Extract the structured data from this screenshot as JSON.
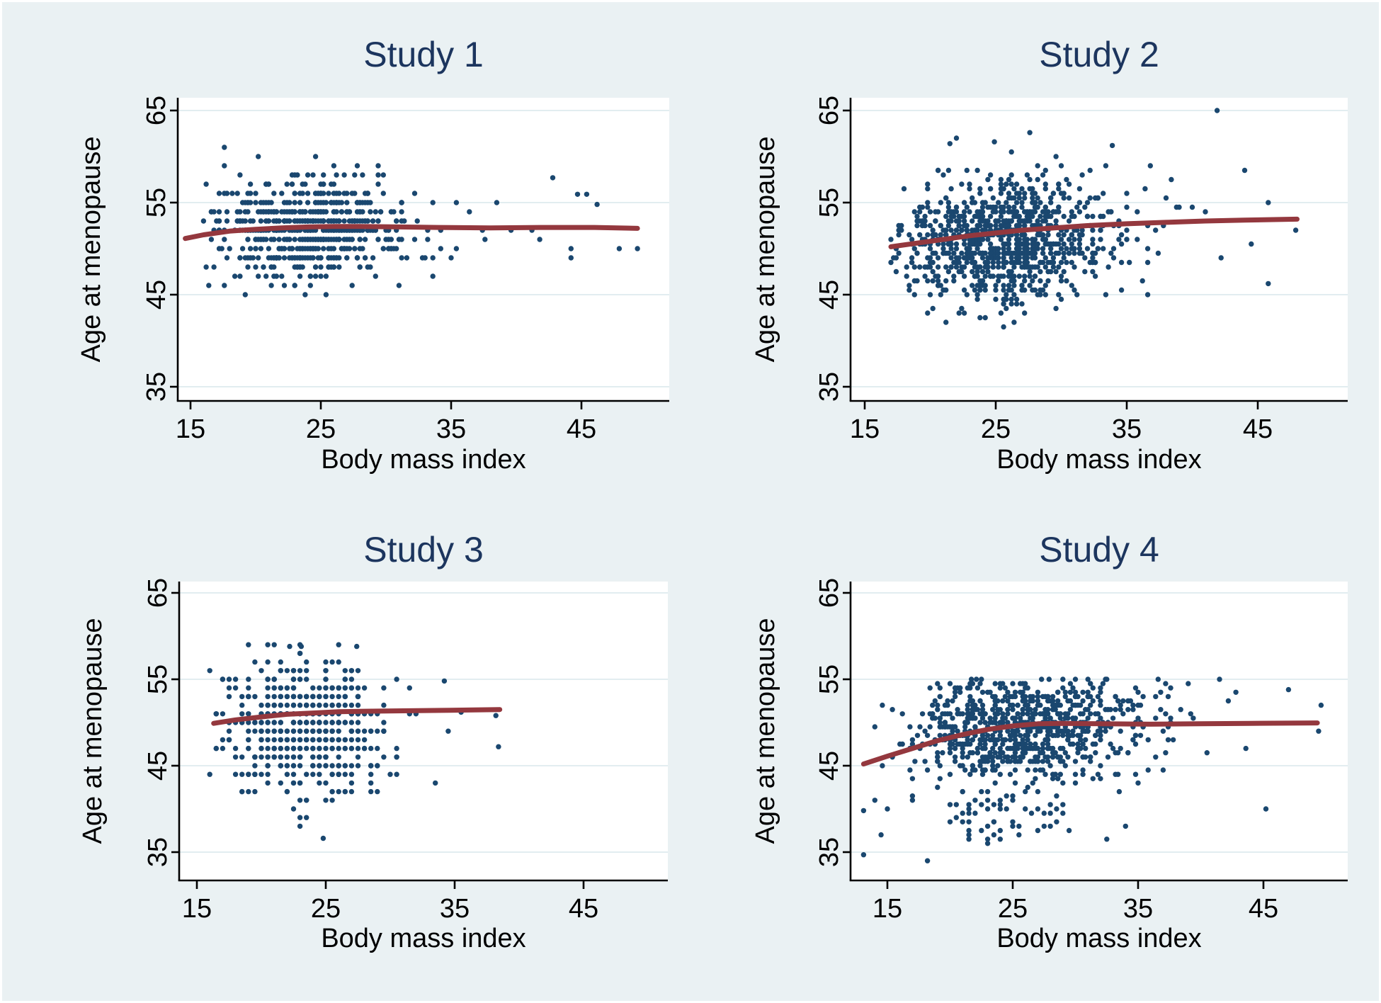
{
  "figure": {
    "background_color": "#eaf1f3",
    "plot_background": "#ffffff",
    "grid_color": "#e2edf0",
    "axis_color": "#000000",
    "point_color": "#1a476f",
    "trend_color": "#94383e",
    "title_color": "#1c355e",
    "x_axis_label": "Body mass index",
    "y_axis_label": "Age at menopause"
  },
  "chart_data": [
    {
      "type": "scatter",
      "title": "Study 1",
      "xlabel": "Body mass index",
      "ylabel": "Age at menopause",
      "x_ticks": [
        15,
        25,
        35,
        45
      ],
      "y_ticks": [
        35,
        45,
        55,
        65
      ],
      "xlim": [
        13.9,
        51.7
      ],
      "ylim": [
        33.5,
        66.4
      ],
      "grid": true,
      "n_points": 650,
      "bmi_dist": {
        "mean": 24.3,
        "sd": 3.6,
        "min": 16,
        "max": 49.3,
        "q": 0.2,
        "tail_p": 0.05,
        "tail_spread": 12
      },
      "age_dist": {
        "mean": 52.2,
        "sd": 2.8,
        "min": 45,
        "max": 61,
        "q": 1
      },
      "corr": 0.02,
      "outliers": [
        [
          42.8,
          57.7
        ],
        [
          44.7,
          55.9
        ],
        [
          45.4,
          55.9
        ],
        [
          46.2,
          54.8
        ],
        [
          44.2,
          50
        ],
        [
          47.9,
          50
        ],
        [
          49.3,
          50
        ],
        [
          41.2,
          52
        ],
        [
          38.5,
          55
        ]
      ],
      "trend_line": [
        [
          14.6,
          51.1
        ],
        [
          16,
          51.5
        ],
        [
          18,
          51.9
        ],
        [
          20,
          52.1
        ],
        [
          22,
          52.25
        ],
        [
          24,
          52.35
        ],
        [
          26,
          52.4
        ],
        [
          28,
          52.4
        ],
        [
          31,
          52.35
        ],
        [
          34,
          52.3
        ],
        [
          38,
          52.25
        ],
        [
          42,
          52.3
        ],
        [
          46,
          52.3
        ],
        [
          49.3,
          52.2
        ]
      ],
      "seed": 7
    },
    {
      "type": "scatter",
      "title": "Study 2",
      "xlabel": "Body mass index",
      "ylabel": "Age at menopause",
      "x_ticks": [
        15,
        25,
        35,
        45
      ],
      "y_ticks": [
        35,
        45,
        55,
        65
      ],
      "xlim": [
        13.9,
        51.9
      ],
      "ylim": [
        33.5,
        66.4
      ],
      "grid": true,
      "n_points": 950,
      "bmi_dist": {
        "mean": 25.5,
        "sd": 3.9,
        "min": 17,
        "max": 48,
        "q": 0.2,
        "tail_p": 0.05,
        "tail_spread": 13
      },
      "age_dist": {
        "mean": 50.8,
        "sd": 3.4,
        "min": 41.5,
        "max": 62.5,
        "q": 0.5
      },
      "corr": 0.08,
      "outliers": [
        [
          41.9,
          65
        ],
        [
          27.6,
          62.6
        ],
        [
          24.9,
          61.6
        ],
        [
          33.9,
          61.2
        ],
        [
          21.5,
          61.4
        ],
        [
          47.9,
          52
        ],
        [
          45.8,
          46.2
        ],
        [
          44.5,
          50.5
        ]
      ],
      "trend_line": [
        [
          17,
          50.2
        ],
        [
          19,
          50.6
        ],
        [
          21,
          51.0
        ],
        [
          23,
          51.4
        ],
        [
          25,
          51.7
        ],
        [
          27,
          52.0
        ],
        [
          29,
          52.2
        ],
        [
          32,
          52.5
        ],
        [
          35,
          52.7
        ],
        [
          38,
          52.85
        ],
        [
          41,
          53.0
        ],
        [
          44,
          53.1
        ],
        [
          48,
          53.2
        ]
      ],
      "seed": 13
    },
    {
      "type": "scatter",
      "title": "Study 3",
      "xlabel": "Body mass index",
      "ylabel": "Age at menopause",
      "x_ticks": [
        15,
        25,
        35,
        45
      ],
      "y_ticks": [
        35,
        45,
        55,
        65
      ],
      "xlim": [
        13.6,
        51.5
      ],
      "ylim": [
        31.7,
        66.3
      ],
      "grid": true,
      "n_points": 560,
      "bmi_dist": {
        "mean": 23.2,
        "sd": 3.2,
        "min": 16,
        "max": 38.5,
        "q": 0.5,
        "tail_p": 0.04,
        "tail_spread": 8
      },
      "age_dist": {
        "mean": 49.8,
        "sd": 3.9,
        "min": 36,
        "max": 59,
        "q": 1
      },
      "corr": 0.04,
      "outliers": [
        [
          24.8,
          36.6
        ],
        [
          22.2,
          58.8
        ],
        [
          23.1,
          58.8
        ],
        [
          27.4,
          58.8
        ],
        [
          34.2,
          54.8
        ],
        [
          35.5,
          51.2
        ],
        [
          38.2,
          50.8
        ],
        [
          38.4,
          47.2
        ]
      ],
      "trend_line": [
        [
          16.3,
          49.9
        ],
        [
          18,
          50.3
        ],
        [
          20,
          50.65
        ],
        [
          22,
          50.95
        ],
        [
          24,
          51.1
        ],
        [
          26,
          51.25
        ],
        [
          28,
          51.3
        ],
        [
          31,
          51.35
        ],
        [
          34,
          51.4
        ],
        [
          36.5,
          51.45
        ],
        [
          38.5,
          51.5
        ]
      ],
      "seed": 5
    },
    {
      "type": "scatter",
      "title": "Study 4",
      "xlabel": "Body mass index",
      "ylabel": "Age at menopause",
      "x_ticks": [
        15,
        25,
        35,
        45
      ],
      "y_ticks": [
        35,
        45,
        55,
        65
      ],
      "xlim": [
        12.1,
        51.7
      ],
      "ylim": [
        31.7,
        66.3
      ],
      "grid": true,
      "n_points": 820,
      "bmi_dist": {
        "mean": 25.8,
        "sd": 4.6,
        "min": 14,
        "max": 49.6,
        "q": 0.2,
        "tail_p": 0.06,
        "tail_spread": 12
      },
      "age_dist": {
        "mean": 49.3,
        "sd": 3.2,
        "min": 42.5,
        "max": 54.9,
        "q": 0.5
      },
      "corr": 0.12,
      "low_cluster": {
        "n_points": 68,
        "bmi_dist": {
          "mean": 24.2,
          "sd": 4.3,
          "min": 13,
          "max": 45.5,
          "q": 0.5,
          "tail_p": 0.04,
          "tail_spread": 10
        },
        "age_dist": {
          "mean": 38.8,
          "sd": 2.1,
          "min": 34.3,
          "max": 42.4,
          "q": 0.5
        }
      },
      "outliers": [
        [
          13.1,
          34.7
        ],
        [
          18.2,
          34.0
        ],
        [
          13.1,
          39.8
        ],
        [
          21.7,
          55
        ],
        [
          22.1,
          55
        ],
        [
          22.5,
          55
        ],
        [
          27.3,
          55
        ],
        [
          27.9,
          55
        ],
        [
          32.5,
          55
        ],
        [
          36.6,
          55
        ],
        [
          41.5,
          55
        ],
        [
          49.4,
          49.0
        ],
        [
          49.6,
          52.0
        ],
        [
          45.2,
          40.0
        ],
        [
          40.5,
          46.5
        ],
        [
          47.0,
          53.8
        ]
      ],
      "trend_line": [
        [
          13.1,
          45.2
        ],
        [
          15,
          46.1
        ],
        [
          17,
          47.0
        ],
        [
          19,
          47.9
        ],
        [
          21,
          48.6
        ],
        [
          23,
          49.2
        ],
        [
          25,
          49.6
        ],
        [
          27,
          49.85
        ],
        [
          29,
          49.9
        ],
        [
          32,
          49.85
        ],
        [
          36,
          49.8
        ],
        [
          40,
          49.85
        ],
        [
          44,
          49.9
        ],
        [
          49.3,
          49.95
        ]
      ],
      "seed": 29
    }
  ]
}
